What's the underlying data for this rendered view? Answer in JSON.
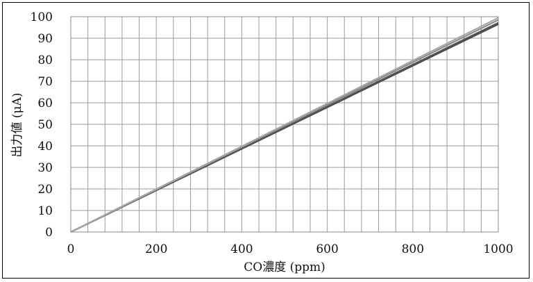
{
  "chart_data": {
    "type": "line",
    "title": "",
    "xlabel": "CO濃度 (ppm)",
    "ylabel": "出力値 (μA)",
    "xlim": [
      0,
      1000
    ],
    "ylim": [
      0,
      100
    ],
    "x_ticks": [
      0,
      200,
      400,
      600,
      800,
      1000
    ],
    "y_ticks": [
      0,
      10,
      20,
      30,
      40,
      50,
      60,
      70,
      80,
      90,
      100
    ],
    "x_minor_gridlines": 25,
    "y_gridlines": 10,
    "grid": true,
    "legend": "none",
    "series": [
      {
        "x": [
          0,
          1000
        ],
        "values": [
          0,
          96.5
        ],
        "color": "#4a4a4a"
      },
      {
        "x": [
          0,
          1000
        ],
        "values": [
          0,
          97.2
        ],
        "color": "#555555"
      },
      {
        "x": [
          0,
          1000
        ],
        "values": [
          0,
          98.5
        ],
        "color": "#8c8c8c"
      },
      {
        "x": [
          0,
          1000
        ],
        "values": [
          0,
          99.5
        ],
        "color": "#a6a6a6"
      }
    ]
  }
}
